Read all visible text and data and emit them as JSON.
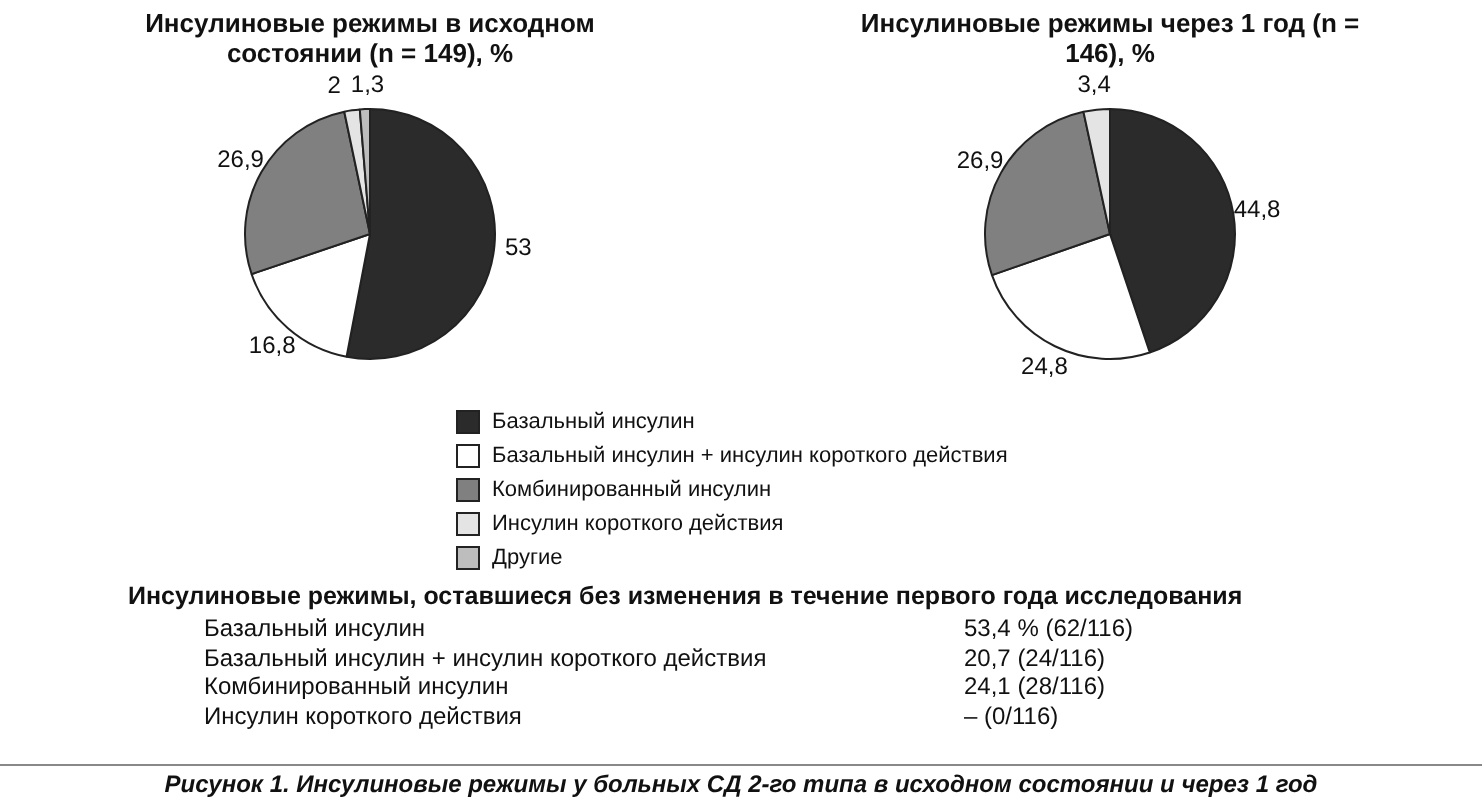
{
  "chart_data": [
    {
      "type": "pie",
      "title": "Инсулиновые режимы в исходном состоянии (n = 149), %",
      "categories": [
        "Базальный инсулин",
        "Базальный инсулин + инсулин короткого действия",
        "Комбинированный инсулин",
        "Инсулин короткого действия",
        "Другие"
      ],
      "values": [
        53,
        16.8,
        26.9,
        2,
        1.3
      ],
      "value_labels": [
        "53",
        "16,8",
        "26,9",
        "2",
        "1,3"
      ],
      "colors": [
        "#2b2b2b",
        "#ffffff",
        "#808080",
        "#e4e4e4",
        "#bdbdbd"
      ],
      "legend": "bottom"
    },
    {
      "type": "pie",
      "title": "Инсулиновые режимы через 1 год (n = 146), %",
      "categories": [
        null,
        null,
        null,
        null
      ],
      "values": [
        44.8,
        24.8,
        26.9,
        3.4
      ],
      "value_labels": [
        "44,8",
        "24,8",
        "26,9",
        "3,4"
      ],
      "colors": [
        "#2b2b2b",
        "#ffffff",
        "#808080",
        "#e4e4e4"
      ]
    },
    {
      "type": "other",
      "title": "Инсулиновые режимы, оставшиеся без изменения в течение первого года исследования",
      "annotations": [
        "Базальный инсулин",
        "53,4 % (62/116)",
        "Базальный инсулин + инсулин короткого действия",
        "20,7 (24/116)",
        "Комбинированный инсулин",
        "24,1 (28/116)",
        "Инсулин короткого действия",
        "– (0/116)",
        "Рисунок 1. Инсулиновые режимы у больных СД 2-го типа в исходном состоянии и через 1 год"
      ]
    }
  ]
}
